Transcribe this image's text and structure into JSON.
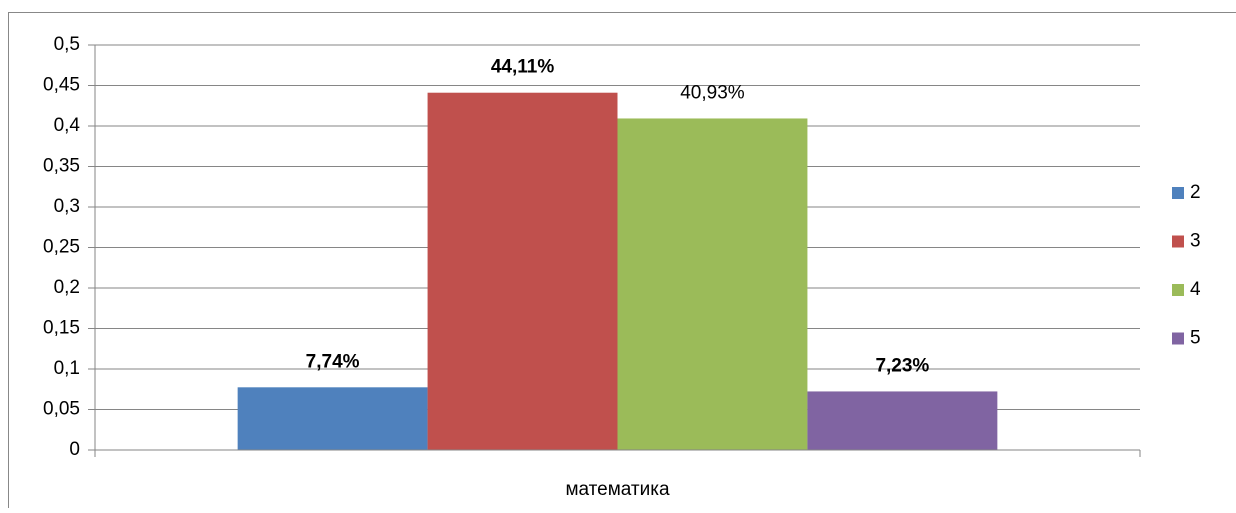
{
  "chart_data": {
    "type": "bar",
    "categories": [
      "математика"
    ],
    "series": [
      {
        "name": "2",
        "color": "#4f81bd",
        "values": [
          0.0774
        ],
        "value_labels": [
          "7,74%"
        ],
        "bold": true
      },
      {
        "name": "3",
        "color": "#c0504d",
        "values": [
          0.4411
        ],
        "value_labels": [
          "44,11%"
        ],
        "bold": true
      },
      {
        "name": "4",
        "color": "#9bbb59",
        "values": [
          0.4093
        ],
        "value_labels": [
          "40,93%"
        ],
        "bold": false
      },
      {
        "name": "5",
        "color": "#8064a2",
        "values": [
          0.0723
        ],
        "value_labels": [
          "7,23%"
        ],
        "bold": true
      }
    ],
    "ylim": [
      0,
      0.5
    ],
    "yticks": [
      0,
      {
        "value": 0.05,
        "label": "0,05"
      },
      {
        "value": 0.1,
        "label": "0,1"
      },
      {
        "value": 0.15,
        "label": "0,15"
      },
      {
        "value": 0.2,
        "label": "0,2"
      },
      {
        "value": 0.25,
        "label": "0,25"
      },
      {
        "value": 0.3,
        "label": "0,3"
      },
      {
        "value": 0.35,
        "label": "0,35"
      },
      {
        "value": 0.4,
        "label": "0,4"
      },
      {
        "value": 0.45,
        "label": "0,45"
      },
      {
        "value": 0.5,
        "label": "0,5"
      }
    ],
    "grid": true,
    "legend": "right"
  }
}
